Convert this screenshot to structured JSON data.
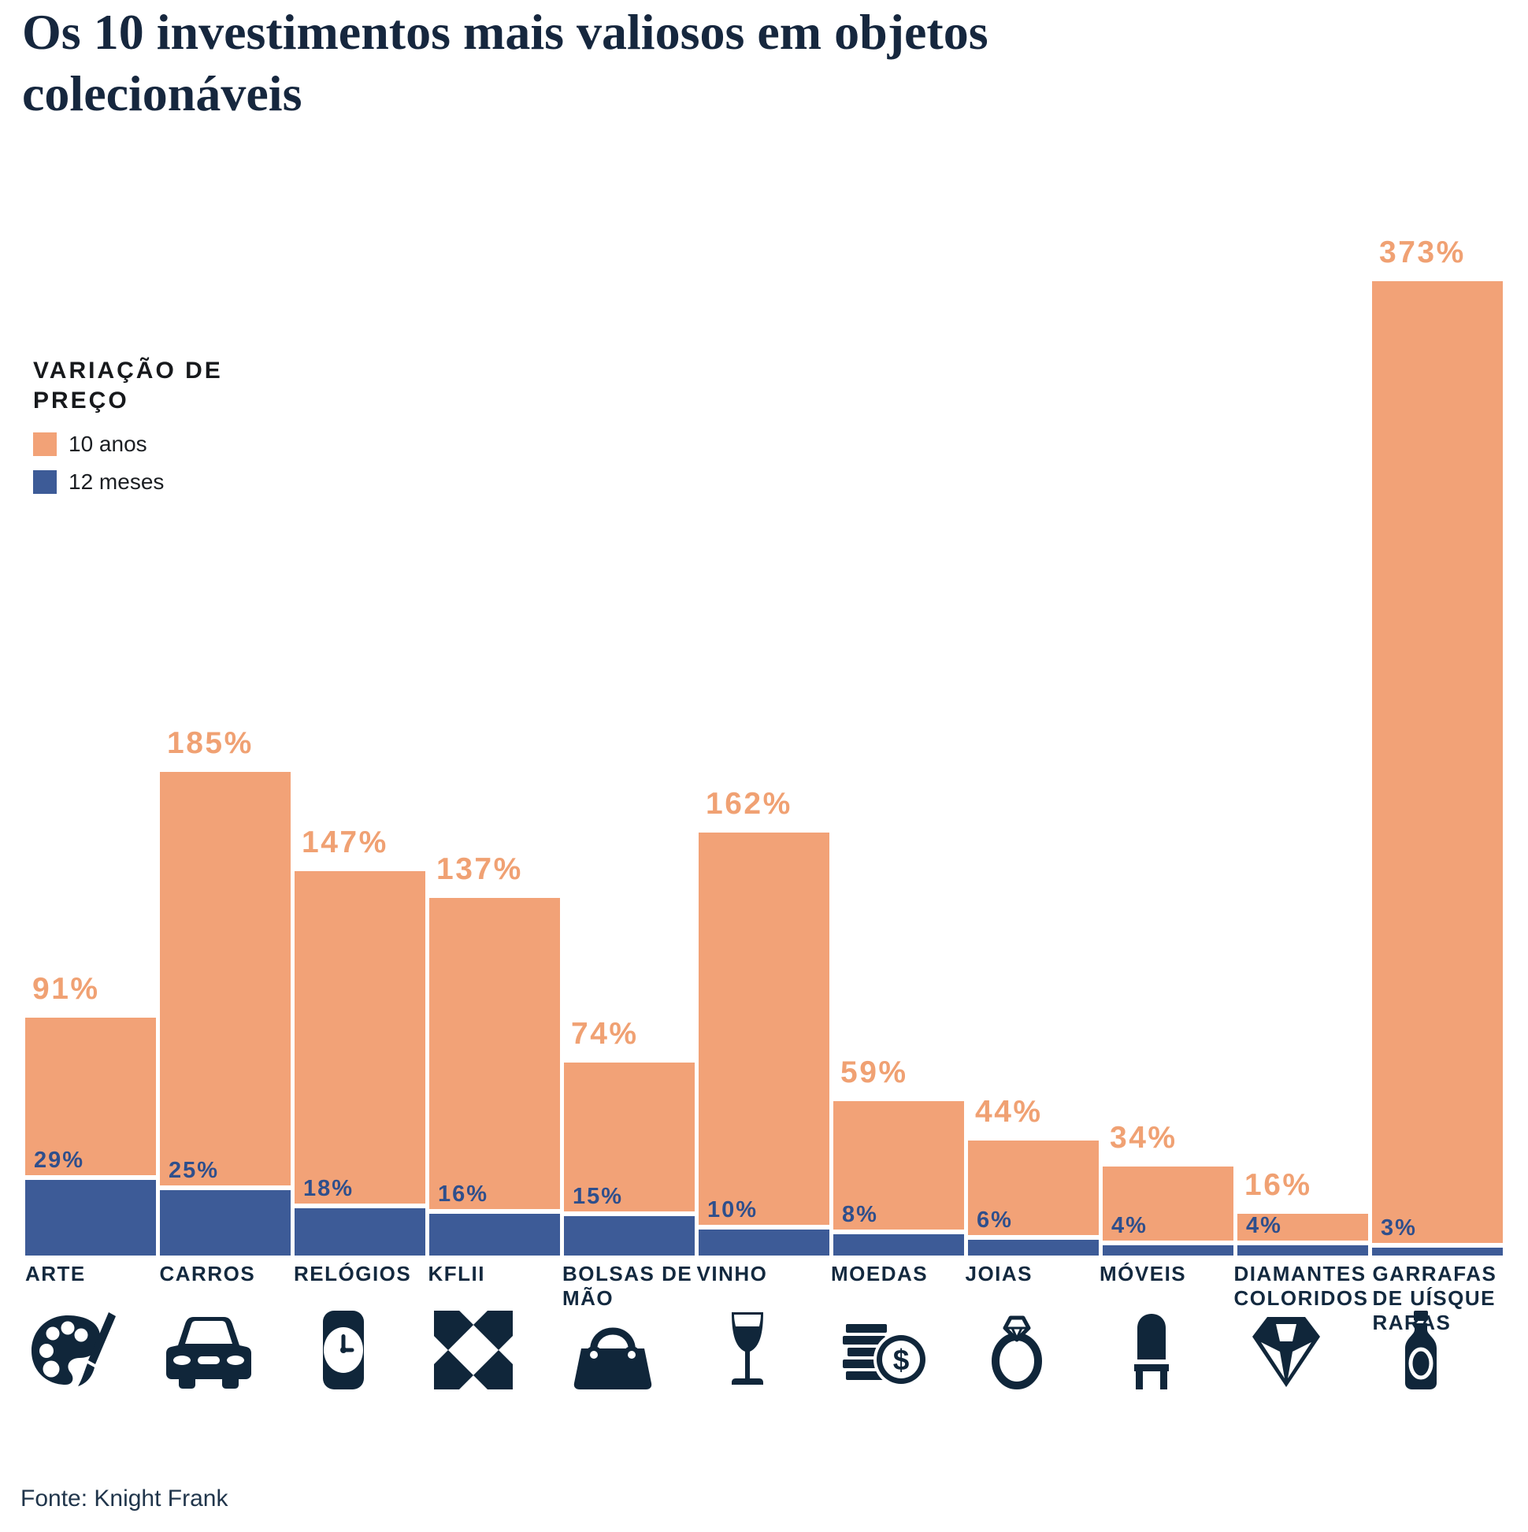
{
  "title": "Os 10 investimentos mais valiosos em objetos colecionáveis",
  "legend": {
    "title": "VARIAÇÃO DE PREÇO",
    "items": [
      {
        "label": "10 anos",
        "color": "#F2A277"
      },
      {
        "label": "12 meses",
        "color": "#3D5B97"
      }
    ]
  },
  "source": "Fonte: Knight Frank",
  "chart_data": {
    "type": "bar",
    "title": "Os 10 investimentos mais valiosos em objetos colecionáveis",
    "categories": [
      "ARTE",
      "CARROS",
      "RELÓGIOS",
      "KFLII",
      "BOLSAS DE MÃO",
      "VINHO",
      "MOEDAS",
      "JOIAS",
      "MÓVEIS",
      "DIAMANTES COLORIDOS",
      "GARRAFAS DE UÍSQUE RARAS"
    ],
    "series": [
      {
        "name": "10 anos",
        "values": [
          91,
          185,
          147,
          137,
          74,
          162,
          59,
          44,
          34,
          16,
          373
        ]
      },
      {
        "name": "12 meses",
        "values": [
          29,
          25,
          18,
          16,
          15,
          10,
          8,
          6,
          4,
          4,
          3
        ]
      }
    ],
    "value_suffix": "%",
    "icons": [
      "palette-icon",
      "car-icon",
      "watch-icon",
      "kflii-logo-icon",
      "handbag-icon",
      "wine-glass-icon",
      "coins-icon",
      "ring-icon",
      "chair-icon",
      "diamond-icon",
      "whisky-bottle-icon"
    ],
    "colors": {
      "bar_10y": "#F2A277",
      "bar_12m": "#3D5B97",
      "label_10y": "#F0A173",
      "label_12m": "#2F4F8C",
      "icon_navy": "#10263A",
      "category_label": "#13293F"
    },
    "ylim": [
      0,
      373
    ],
    "grid": false,
    "legend_position": "top-left",
    "xlabel": "",
    "ylabel": ""
  }
}
